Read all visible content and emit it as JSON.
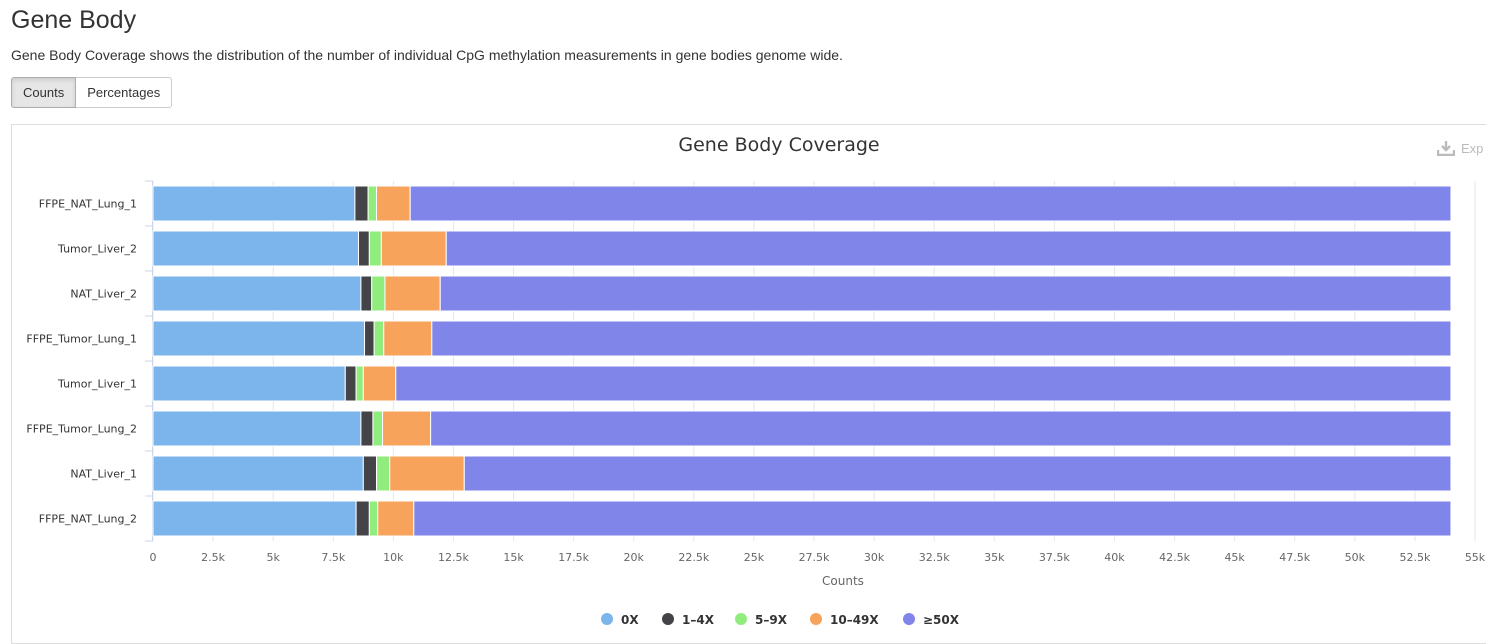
{
  "page": {
    "title": "Gene Body",
    "description": "Gene Body Coverage shows the distribution of the number of individual CpG methylation measurements in gene bodies genome wide."
  },
  "view_toggle": {
    "options": [
      "Counts",
      "Percentages"
    ],
    "selected": "Counts"
  },
  "export": {
    "label": "Exp",
    "icon": "download-icon"
  },
  "colors": {
    "0X": "#7cb5ec",
    "1-4X": "#434348",
    "5-9X": "#90ed7d",
    "10-49X": "#f7a35c",
    ">=50X": "#8085e9"
  },
  "chart_data": {
    "type": "bar",
    "orientation": "horizontal",
    "stacked": true,
    "title": "Gene Body Coverage",
    "xlabel": "Counts",
    "ylabel": "",
    "xlim": [
      0,
      55000
    ],
    "x_ticks": [
      "0",
      "2.5k",
      "5k",
      "7.5k",
      "10k",
      "12.5k",
      "15k",
      "17.5k",
      "20k",
      "22.5k",
      "25k",
      "27.5k",
      "30k",
      "32.5k",
      "35k",
      "37.5k",
      "40k",
      "42.5k",
      "45k",
      "47.5k",
      "50k",
      "52.5k",
      "55k"
    ],
    "x_tick_values": [
      0,
      2500,
      5000,
      7500,
      10000,
      12500,
      15000,
      17500,
      20000,
      22500,
      25000,
      27500,
      30000,
      32500,
      35000,
      37500,
      40000,
      42500,
      45000,
      47500,
      50000,
      52500,
      55000
    ],
    "grid": true,
    "legend_position": "bottom-center",
    "categories": [
      "FFPE_NAT_Lung_1",
      "Tumor_Liver_2",
      "NAT_Liver_2",
      "FFPE_Tumor_Lung_1",
      "Tumor_Liver_1",
      "FFPE_Tumor_Lung_2",
      "NAT_Liver_1",
      "FFPE_NAT_Lung_2"
    ],
    "series": [
      {
        "name": "0X",
        "values": [
          8400,
          8550,
          8650,
          8800,
          8000,
          8650,
          8750,
          8450
        ]
      },
      {
        "name": "1–4X",
        "values": [
          550,
          450,
          450,
          400,
          450,
          500,
          550,
          550
        ]
      },
      {
        "name": "5–9X",
        "values": [
          350,
          500,
          550,
          400,
          300,
          400,
          550,
          350
        ]
      },
      {
        "name": "10–49X",
        "values": [
          1400,
          2700,
          2300,
          2000,
          1350,
          2000,
          3100,
          1500
        ]
      },
      {
        "name": "≥50X",
        "values": [
          43300,
          41800,
          42050,
          42400,
          43900,
          42450,
          41050,
          43150
        ]
      }
    ]
  }
}
